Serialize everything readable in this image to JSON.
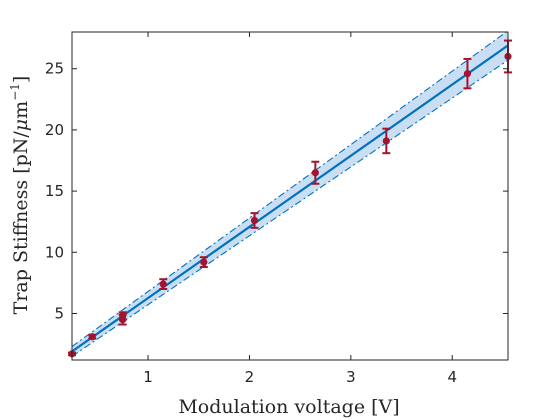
{
  "chart_data": {
    "type": "scatter",
    "title": "",
    "xlabel": "Modulation voltage [V]",
    "ylabel_main": "Trap Stiffness [pN/",
    "ylabel_mu": "μ",
    "ylabel_unit": "m",
    "ylabel_exp": "−1",
    "ylabel_close": "]",
    "xlim": [
      0.25,
      4.55
    ],
    "ylim": [
      1.2,
      28.0
    ],
    "x_ticks": [
      1,
      2,
      3,
      4
    ],
    "y_ticks": [
      5,
      10,
      15,
      20,
      25
    ],
    "grid": false,
    "series": [
      {
        "style": "markers-with-error-bars",
        "x": [
          0.25,
          0.45,
          0.75,
          0.75,
          1.15,
          1.55,
          2.05,
          2.65,
          3.35,
          4.15,
          4.55
        ],
        "y": [
          1.7,
          3.1,
          4.5,
          4.8,
          7.4,
          9.2,
          12.6,
          16.5,
          19.1,
          24.6,
          26.0
        ],
        "err": [
          0.1,
          0.15,
          0.4,
          0.3,
          0.4,
          0.4,
          0.6,
          0.9,
          1.0,
          1.2,
          1.3
        ]
      }
    ],
    "fit": {
      "style": "line-with-confidence-band",
      "x": [
        0.25,
        4.55
      ],
      "y": [
        1.9,
        26.9
      ],
      "band_lower": [
        1.5,
        25.7
      ],
      "band_upper": [
        2.3,
        28.1
      ]
    },
    "colors": {
      "marker": "#a2142f",
      "fit_line": "#0072bd",
      "band_fill": "#c9def2",
      "band_edge": "#0072bd",
      "axis": "#262626"
    }
  }
}
